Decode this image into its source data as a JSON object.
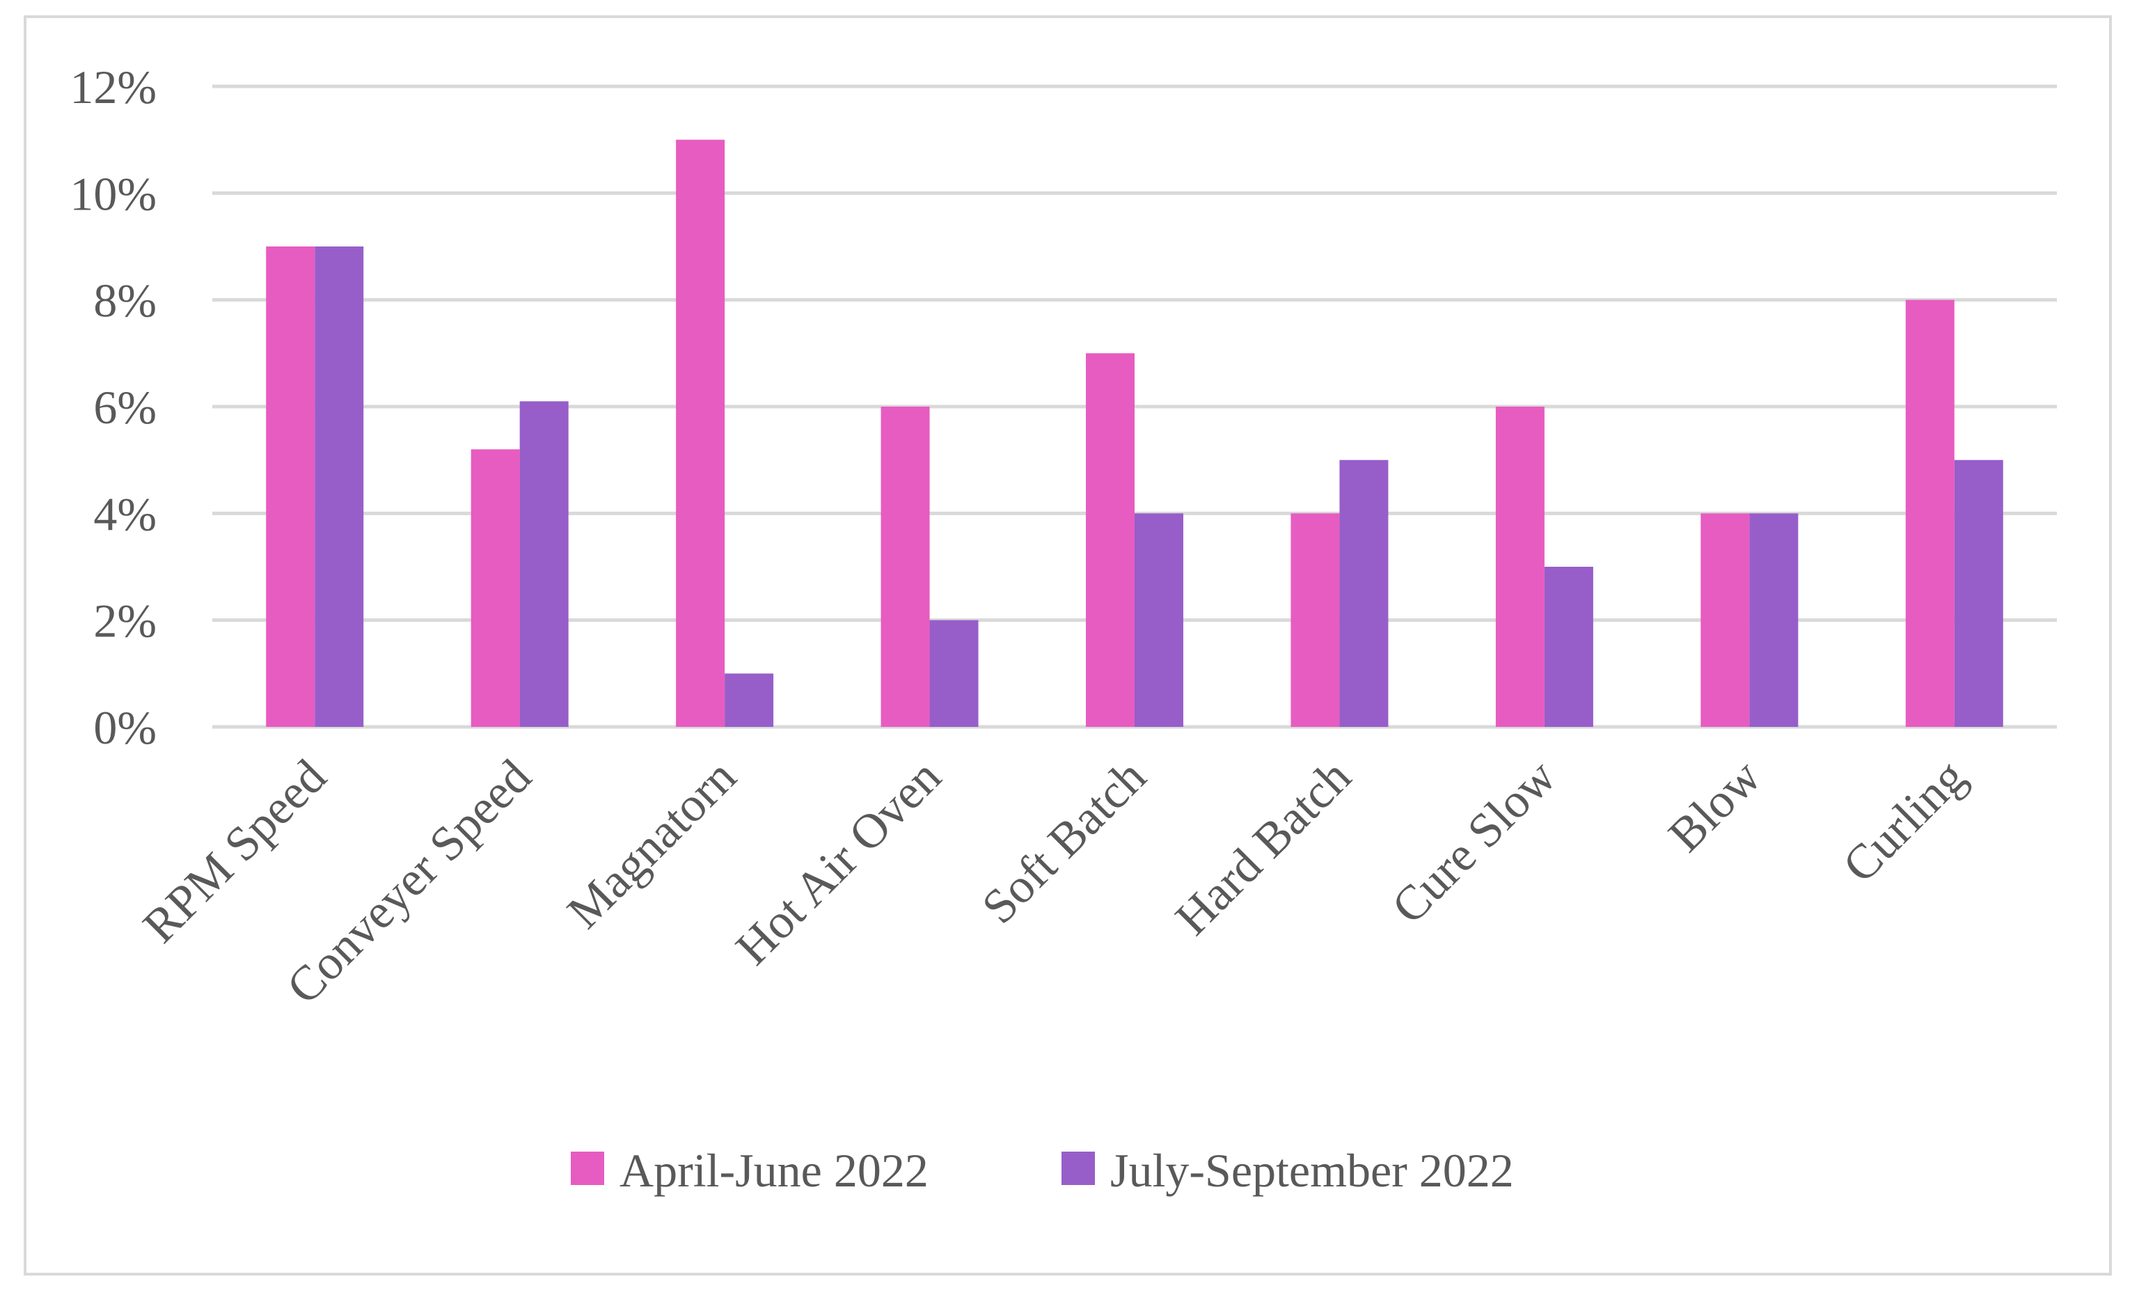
{
  "chart_data": {
    "type": "bar",
    "title": "",
    "xlabel": "",
    "ylabel": "",
    "categories": [
      "RPM Speed",
      "Conveyer Speed",
      "Magnatorn",
      "Hot Air Oven",
      "Soft Batch",
      "Hard Batch",
      "Cure Slow",
      "Blow",
      "Curling"
    ],
    "series": [
      {
        "name": "April-June 2022",
        "color": "#e75cc1",
        "values": [
          9,
          5.2,
          11,
          6,
          7,
          4,
          6,
          4,
          8
        ]
      },
      {
        "name": "July-September 2022",
        "color": "#975ec9",
        "values": [
          9,
          6.1,
          1,
          2,
          4,
          5,
          3,
          4,
          5
        ]
      }
    ],
    "ylim": [
      0,
      12
    ],
    "yticks": [
      0,
      2,
      4,
      6,
      8,
      10,
      12
    ],
    "ytick_suffix": "%",
    "grid": true,
    "gridColor": "#d9d9d9",
    "legend": "bottom"
  }
}
